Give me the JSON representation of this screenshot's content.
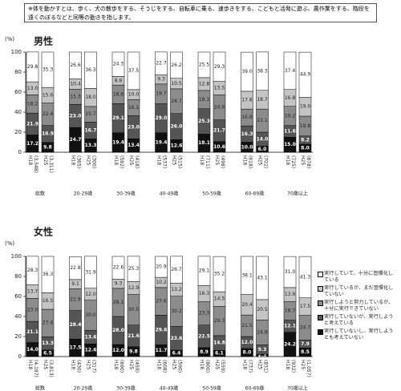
{
  "note": "※体を動かすとは、歩く、犬の散歩をする、そうじをする、自転車に乗る、速歩きをする、こどもと活発に遊ぶ、農作業をする、階段を遠くのぼるなどと同等の動きを指します。",
  "chart_data": [
    {
      "type": "bar",
      "stacked": true,
      "title": "男性",
      "ylabel": "(%)",
      "groups": [
        "総数",
        "20-29歳",
        "30-39歳",
        "40-49歳",
        "50-59歳",
        "60-69歳",
        "70歳以上"
      ],
      "categories": [
        "H18",
        "H25",
        "H18",
        "H25",
        "H18",
        "H25",
        "H18",
        "H25",
        "H18",
        "H25",
        "H18",
        "H25",
        "H18",
        "H25"
      ],
      "sample_sizes": [
        "(3,548)",
        "(3,311)",
        "(365)",
        "(300)",
        "(592)",
        "(418)",
        "(537)",
        "(515)",
        "(711)",
        "(498)",
        "(618)",
        "(702)",
        "(725)",
        "(878)"
      ],
      "ylim": [
        0,
        100
      ],
      "yticks": [
        0,
        20,
        40,
        60,
        80,
        100
      ],
      "series": [
        {
          "color": "#111111",
          "values": [
            17.2,
            9.8,
            24.7,
            13.3,
            19.4,
            13.4,
            19.4,
            12.6,
            18.1,
            10.6,
            10.0,
            6.0,
            15.0,
            8.0
          ],
          "value_labels": [
            "17.2",
            "9.8",
            "24.7",
            "13.3",
            "19.4",
            "13.4",
            "19.4",
            "12.6",
            "18.1",
            "10.6",
            "10.0",
            "6.0",
            "15.0",
            "8.0"
          ]
        },
        {
          "color": "#555555",
          "values": [
            21.9,
            16.9,
            23.0,
            16.7,
            29.1,
            23.0,
            29.0,
            26.0,
            25.3,
            21.7,
            16.3,
            14.0,
            11.6,
            8.2
          ],
          "value_labels": [
            "21.9",
            "16.9",
            "23.0",
            "16.7",
            "29.1",
            "23.0",
            "29.0",
            "26.0",
            "25.3",
            "21.7",
            "16.3",
            "14.0",
            "11.6",
            "8.2"
          ]
        },
        {
          "color": "#8c8c8c",
          "values": [
            18.2,
            22.4,
            15.3,
            15.7,
            18.6,
            16.1,
            19.7,
            24.7,
            18.3,
            24.9,
            16.8,
            23.1,
            19.2,
            19.8
          ],
          "value_labels": [
            "18.2",
            "22.4",
            "15.3",
            "15.7",
            "18.6",
            "16.1",
            "19.7",
            "24.7",
            "18.3",
            "24.9",
            "16.8",
            "23.1",
            "19.2",
            "19.8"
          ]
        },
        {
          "color": "#c4c4c4",
          "values": [
            13.0,
            15.6,
            10.4,
            18.0,
            8.6,
            10.0,
            9.3,
            10.5,
            12.8,
            13.5,
            17.8,
            18.7,
            16.8,
            19.0
          ],
          "value_labels": [
            "13.0",
            "15.6",
            "10.4",
            "18.0",
            "8.6",
            "10.0",
            "9.3",
            "10.5",
            "12.8",
            "13.5",
            "17.8",
            "18.7",
            "16.8",
            "19.0"
          ]
        },
        {
          "color": "#ffffff",
          "values": [
            29.8,
            35.3,
            26.6,
            36.3,
            24.3,
            37.5,
            22.7,
            26.2,
            25.5,
            29.3,
            39.0,
            38.3,
            37.4,
            44.9
          ],
          "value_labels": [
            "29.8",
            "35.3",
            "26.6",
            "36.3",
            "24.3",
            "37.5",
            "22.7",
            "26.2",
            "25.5",
            "29.3",
            "39.0",
            "38.3",
            "37.4",
            "44.9"
          ]
        }
      ]
    },
    {
      "type": "bar",
      "stacked": true,
      "title": "女性",
      "ylabel": "(%)",
      "groups": [
        "総数",
        "20-29歳",
        "30-39歳",
        "40-49歳",
        "50-59歳",
        "60-69歳",
        "70歳以上"
      ],
      "categories": [
        "H18",
        "H25",
        "H18",
        "H25",
        "H18",
        "H25",
        "H18",
        "H25",
        "H18",
        "H25",
        "H18",
        "H25",
        "H18",
        "H25"
      ],
      "sample_sizes": [
        "(4,197)",
        "(3,813)",
        "(430)",
        "(317)",
        "(690)",
        "(459)",
        "(608)",
        "(590)",
        "(800)",
        "(559)",
        "(737)",
        "(831)",
        "(932)",
        "(1,057)"
      ],
      "ylim": [
        0,
        100
      ],
      "yticks": [
        0,
        20,
        40,
        60,
        80,
        100
      ],
      "series": [
        {
          "name": "実行していないし、実行しようとも考えていない",
          "color": "#111111",
          "values": [
            14.0,
            6.5,
            17.5,
            12.6,
            12.0,
            9.8,
            11.7,
            6.4,
            8.9,
            6.1,
            8.0,
            2.3,
            24.2,
            8.5
          ],
          "value_labels": [
            "14.0",
            "6.5",
            "17.5",
            "12.6",
            "12.0",
            "9.8",
            "11.7",
            "6.4",
            "8.9",
            "6.1",
            "8.0",
            "2.3",
            "24.2",
            "8.5"
          ]
        },
        {
          "name": "実行していないが、実行しようと考えている",
          "color": "#555555",
          "values": [
            21.1,
            13.3,
            28.4,
            13.6,
            28.0,
            21.6,
            29.6,
            23.6,
            22.5,
            14.8,
            12.0,
            9.3,
            12.1,
            7.9
          ],
          "value_labels": [
            "21.1",
            "13.3",
            "28.4",
            "13.6",
            "28.0",
            "21.6",
            "29.6",
            "23.6",
            "22.5",
            "14.8",
            "12.0",
            "9.3",
            "12.1",
            "7.9"
          ]
        },
        {
          "name": "実行しようと努力しているが、十分に実行できていない",
          "color": "#8c8c8c",
          "values": [
            23.0,
            27.4,
            21.9,
            30.0,
            28.1,
            30.5,
            27.6,
            30.2,
            23.3,
            29.3,
            21.5,
            24.8,
            18.7,
            24.7
          ],
          "value_labels": [
            "23.0",
            "27.4",
            "21.9",
            "30.0",
            "28.1",
            "30.5",
            "27.6",
            "30.2",
            "23.3",
            "29.3",
            "21.5",
            "24.8",
            "18.7",
            "24.7"
          ]
        },
        {
          "name": "実行しているが、まだ習慣化していない",
          "color": "#c4c4c4",
          "values": [
            13.7,
            16.5,
            9.1,
            12.0,
            9.3,
            12.9,
            10.2,
            13.2,
            16.3,
            14.5,
            20.4,
            20.5,
            13.9,
            17.5
          ],
          "value_labels": [
            "13.7",
            "16.5",
            "9.1",
            "12.0",
            "9.3",
            "12.9",
            "10.2",
            "13.2",
            "16.3",
            "14.5",
            "20.4",
            "20.5",
            "13.9",
            "17.5"
          ]
        },
        {
          "name": "実行していて、十分に習慣化している",
          "color": "#ffffff",
          "values": [
            28.3,
            36.3,
            22.8,
            31.9,
            22.6,
            25.3,
            20.9,
            26.7,
            29.1,
            35.2,
            38.1,
            43.1,
            31.0,
            41.3
          ],
          "value_labels": [
            "28.3",
            "36.3",
            "22.8",
            "31.9",
            "22.6",
            "25.3",
            "20.9",
            "26.7",
            "29.1",
            "35.2",
            "38.1",
            "43.1",
            "31.0",
            "41.3"
          ]
        }
      ]
    }
  ]
}
